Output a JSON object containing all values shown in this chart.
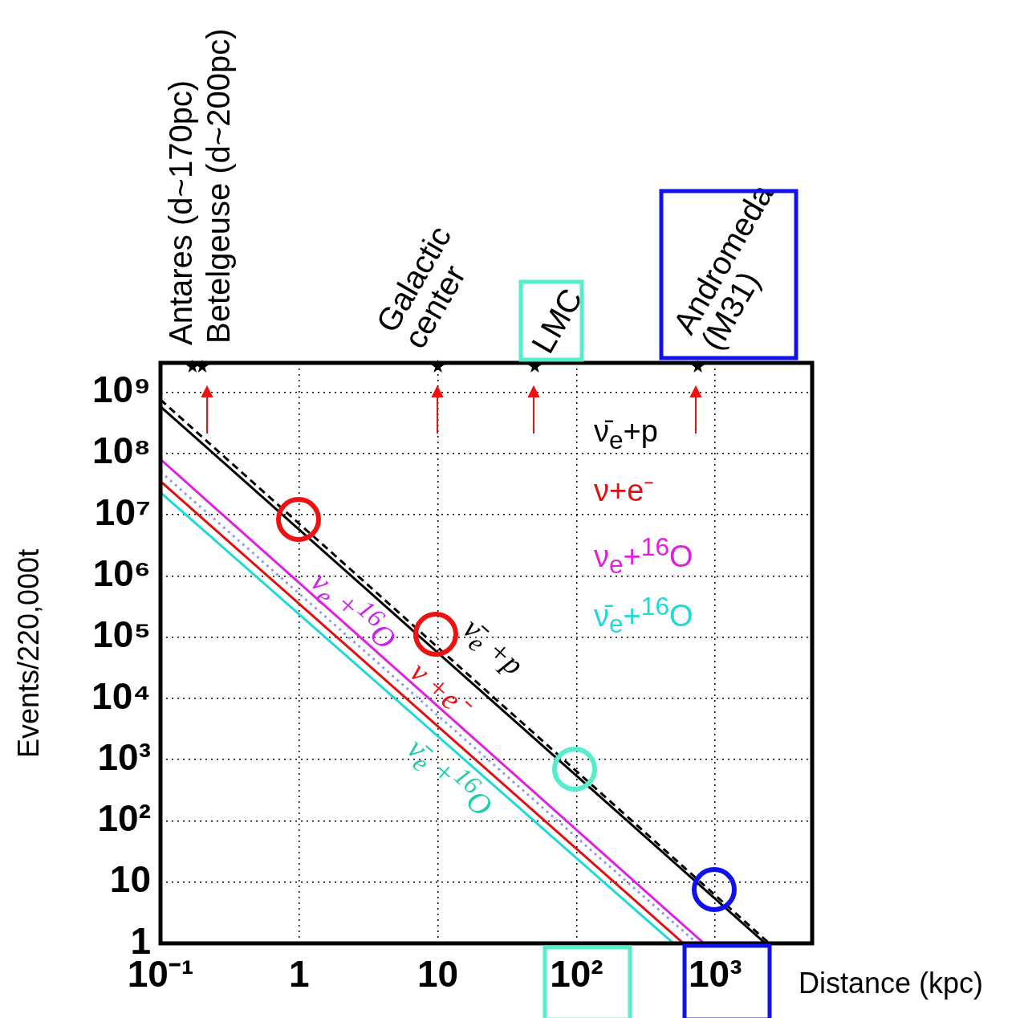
{
  "chart_data": {
    "type": "line",
    "xlabel": "Distance (kpc)",
    "ylabel": "Events/220,000t",
    "log": "xy",
    "grid": true,
    "legend": "right",
    "marker": "none",
    "xlim": [
      0.1,
      5000
    ],
    "ylim": [
      1,
      3000000000
    ],
    "xticks": [
      {
        "value": 0.1,
        "label": "10⁻¹"
      },
      1,
      10,
      {
        "value": 100,
        "label": "10²"
      },
      {
        "value": 1000,
        "label": "10³"
      }
    ],
    "yticks": [
      1,
      10,
      {
        "value": 100,
        "label": "10²"
      },
      {
        "value": 1000,
        "label": "10³"
      },
      {
        "value": 10000,
        "label": "10⁴"
      },
      {
        "value": 100000,
        "label": "10⁵"
      },
      {
        "value": 1000000,
        "label": "10⁶"
      },
      {
        "value": 10000000,
        "label": "10⁷"
      },
      {
        "value": 100000000,
        "label": "10⁸"
      },
      {
        "value": 1000000000,
        "label": "10⁹"
      }
    ],
    "series": [
      {
        "name": "ν̄$_{e}$+p",
        "color": "#000000",
        "x": [
          0.1,
          2300
        ],
        "values": [
          580000000,
          1
        ]
      },
      {
        "color": "#000000",
        "line_style": "dashed",
        "x": [
          0.1,
          2450
        ],
        "values": [
          750000000,
          1
        ]
      },
      {
        "name": "ν+e⁻",
        "color": "#e01010",
        "x": [
          0.1,
          590
        ],
        "values": [
          35000000,
          1
        ]
      },
      {
        "name": "ν$_{e}$+$^{16}$O",
        "color": "#e020e0",
        "x": [
          0.1,
          830
        ],
        "values": [
          80000000,
          1
        ]
      },
      {
        "color": "#8c9cf0",
        "line_style": "dotted",
        "x": [
          0.1,
          740
        ],
        "values": [
          50000000,
          1
        ]
      },
      {
        "name": "ν̄$_{e}$+$^{16}$O",
        "color": "#20d8d8",
        "x": [
          0.1,
          500
        ],
        "values": [
          23000000,
          1
        ]
      },
      {
        "type": "scatter",
        "marker": "star",
        "color": "#000000",
        "x": [
          0.17,
          0.2,
          10,
          50,
          750
        ],
        "values": [
          2600000000,
          2600000000,
          2600000000,
          2600000000,
          2600000000
        ]
      }
    ],
    "annotations": [
      "Antares (d~170pc)",
      "Betelgeuse (d~200pc)",
      "Galactic\ncenter",
      "LMC",
      "Andromeda\n(M31)",
      "ν$_{e}$ +$^{16}$O",
      "ν̄$_{e}$ +p",
      "ν +e⁻",
      "ν̄$_{e}$ +$^{16}$O"
    ]
  }
}
